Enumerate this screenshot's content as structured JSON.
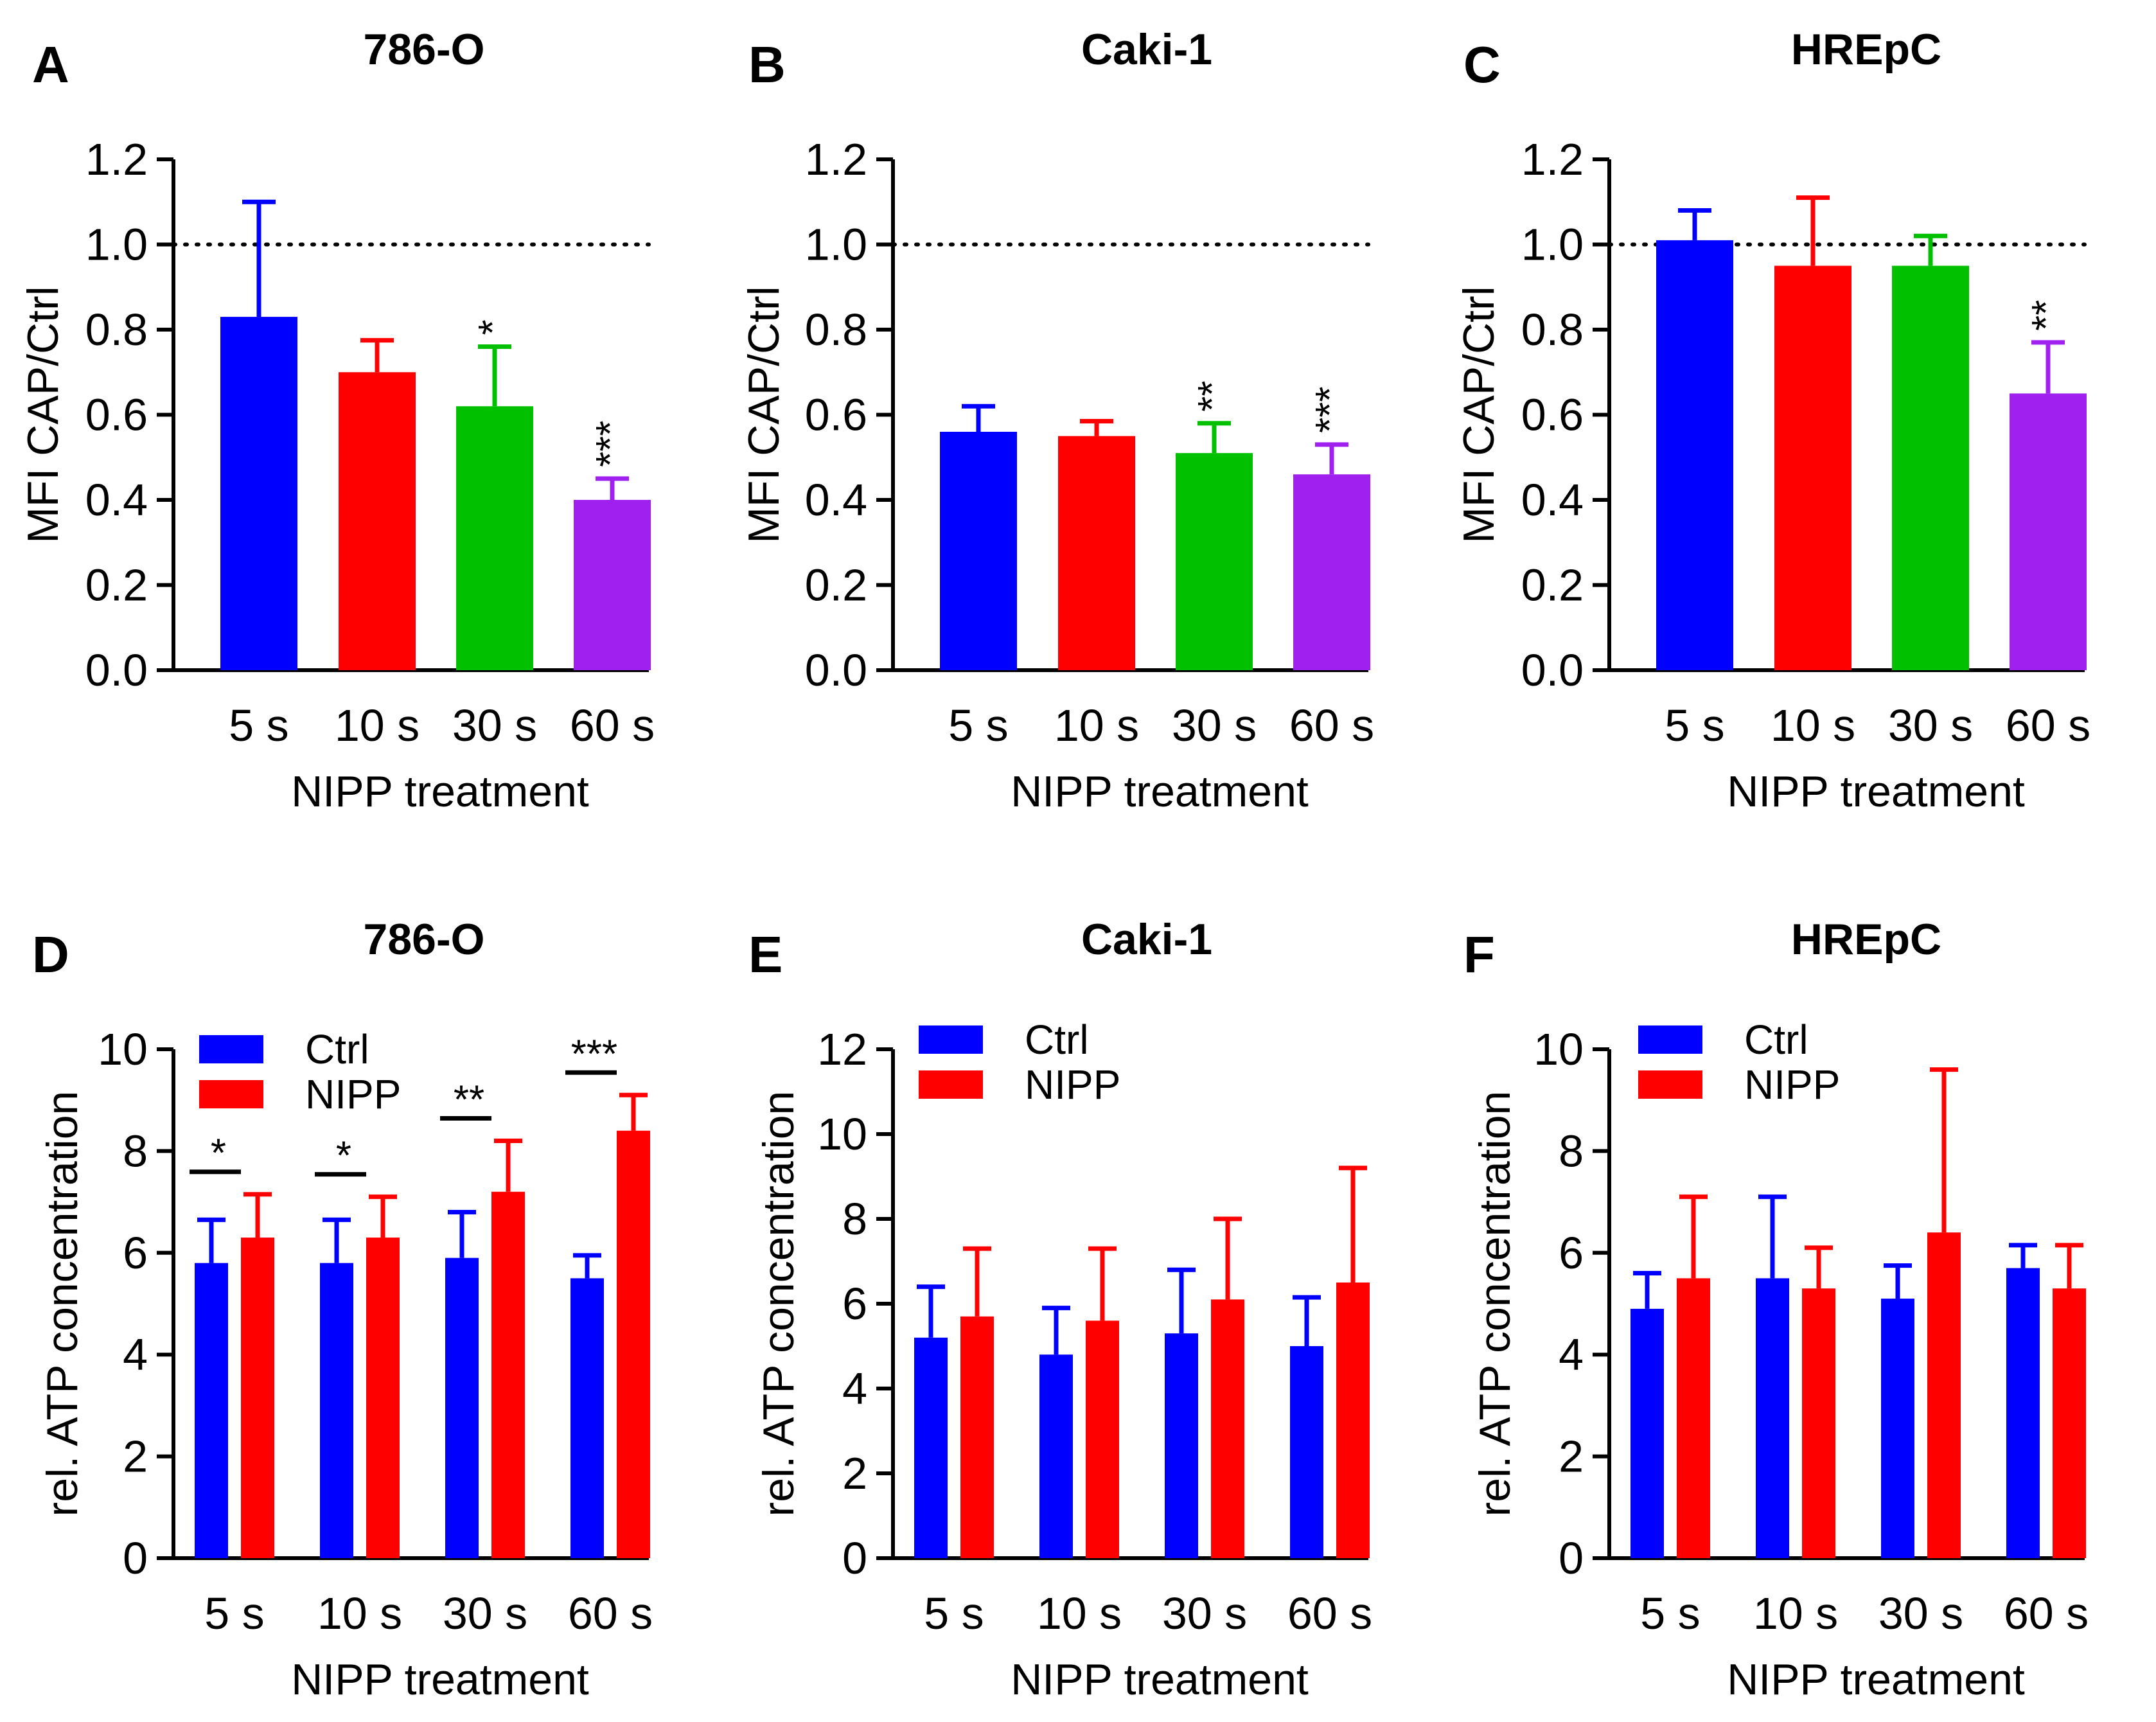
{
  "colors": {
    "blue": "#0000FF",
    "red": "#FF0000",
    "green": "#00C000",
    "purple": "#A020F0",
    "axis": "#000000"
  },
  "chart_data": [
    {
      "id": "A",
      "panel_label": "A",
      "title": "786-O",
      "type": "bar",
      "categories": [
        "5 s",
        "10 s",
        "30 s",
        "60 s"
      ],
      "xlabel": "NIPP treatment",
      "ylabel": "MFI  CAP/Ctrl",
      "ylim": [
        0,
        1.2
      ],
      "yticks": [
        "0.0",
        "0.2",
        "0.4",
        "0.6",
        "0.8",
        "1.0",
        "1.2"
      ],
      "reference_line": 1.0,
      "values": [
        0.83,
        0.7,
        0.62,
        0.4
      ],
      "errors": [
        0.27,
        0.075,
        0.14,
        0.05
      ],
      "bar_colors": [
        "blue",
        "red",
        "green",
        "purple"
      ],
      "significance": [
        "",
        "",
        "*",
        "***"
      ]
    },
    {
      "id": "B",
      "panel_label": "B",
      "title": "Caki-1",
      "type": "bar",
      "categories": [
        "5 s",
        "10 s",
        "30 s",
        "60 s"
      ],
      "xlabel": "NIPP treatment",
      "ylabel": "MFI  CAP/Ctrl",
      "ylim": [
        0,
        1.2
      ],
      "yticks": [
        "0.0",
        "0.2",
        "0.4",
        "0.6",
        "0.8",
        "1.0",
        "1.2"
      ],
      "reference_line": 1.0,
      "values": [
        0.56,
        0.55,
        0.51,
        0.46
      ],
      "errors": [
        0.06,
        0.035,
        0.07,
        0.07
      ],
      "bar_colors": [
        "blue",
        "red",
        "green",
        "purple"
      ],
      "significance": [
        "",
        "",
        "**",
        "***"
      ]
    },
    {
      "id": "C",
      "panel_label": "C",
      "title": "HREpC",
      "type": "bar",
      "categories": [
        "5 s",
        "10 s",
        "30 s",
        "60 s"
      ],
      "xlabel": "NIPP treatment",
      "ylabel": "MFI  CAP/Ctrl",
      "ylim": [
        0,
        1.2
      ],
      "yticks": [
        "0.0",
        "0.2",
        "0.4",
        "0.6",
        "0.8",
        "1.0",
        "1.2"
      ],
      "reference_line": 1.0,
      "values": [
        1.01,
        0.95,
        0.95,
        0.65
      ],
      "errors": [
        0.07,
        0.16,
        0.07,
        0.12
      ],
      "bar_colors": [
        "blue",
        "red",
        "green",
        "purple"
      ],
      "significance": [
        "",
        "",
        "",
        "**"
      ]
    },
    {
      "id": "D",
      "panel_label": "D",
      "title": "786-O",
      "type": "bar",
      "categories": [
        "5 s",
        "10 s",
        "30 s",
        "60 s"
      ],
      "xlabel": "NIPP treatment",
      "ylabel": "rel. ATP concentration",
      "ylim": [
        0,
        10
      ],
      "yticks": [
        "0",
        "2",
        "4",
        "6",
        "8",
        "10"
      ],
      "legend": [
        "Ctrl",
        "NIPP"
      ],
      "series": [
        {
          "name": "Ctrl",
          "color": "blue",
          "values": [
            5.8,
            5.8,
            5.9,
            5.5
          ],
          "errors": [
            0.85,
            0.85,
            0.9,
            0.45
          ]
        },
        {
          "name": "NIPP",
          "color": "red",
          "values": [
            6.3,
            6.3,
            7.2,
            8.4
          ],
          "errors": [
            0.85,
            0.8,
            1.0,
            0.7
          ]
        }
      ],
      "significance": [
        "*",
        "*",
        "**",
        "***"
      ]
    },
    {
      "id": "E",
      "panel_label": "E",
      "title": "Caki-1",
      "type": "bar",
      "categories": [
        "5 s",
        "10 s",
        "30 s",
        "60 s"
      ],
      "xlabel": "NIPP treatment",
      "ylabel": "rel. ATP concentration",
      "ylim": [
        0,
        12
      ],
      "yticks": [
        "0",
        "2",
        "4",
        "6",
        "8",
        "10",
        "12"
      ],
      "legend": [
        "Ctrl",
        "NIPP"
      ],
      "series": [
        {
          "name": "Ctrl",
          "color": "blue",
          "values": [
            5.2,
            4.8,
            5.3,
            5.0
          ],
          "errors": [
            1.2,
            1.1,
            1.5,
            1.15
          ]
        },
        {
          "name": "NIPP",
          "color": "red",
          "values": [
            5.7,
            5.6,
            6.1,
            6.5
          ],
          "errors": [
            1.6,
            1.7,
            1.9,
            2.7
          ]
        }
      ],
      "significance": [
        "",
        "",
        "",
        ""
      ]
    },
    {
      "id": "F",
      "panel_label": "F",
      "title": "HREpC",
      "type": "bar",
      "categories": [
        "5 s",
        "10 s",
        "30 s",
        "60 s"
      ],
      "xlabel": "NIPP treatment",
      "ylabel": "rel. ATP concentration",
      "ylim": [
        0,
        10
      ],
      "yticks": [
        "0",
        "2",
        "4",
        "6",
        "8",
        "10"
      ],
      "legend": [
        "Ctrl",
        "NIPP"
      ],
      "series": [
        {
          "name": "Ctrl",
          "color": "blue",
          "values": [
            4.9,
            5.5,
            5.1,
            5.7
          ],
          "errors": [
            0.7,
            1.6,
            0.65,
            0.45
          ]
        },
        {
          "name": "NIPP",
          "color": "red",
          "values": [
            5.5,
            5.3,
            6.4,
            5.3
          ],
          "errors": [
            1.6,
            0.8,
            3.2,
            0.85
          ]
        }
      ],
      "significance": [
        "",
        "",
        "",
        ""
      ]
    }
  ]
}
